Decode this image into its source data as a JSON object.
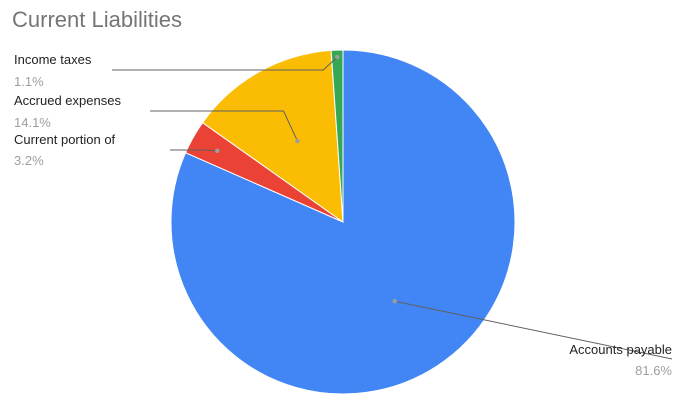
{
  "chart_data": {
    "type": "pie",
    "title": "Current Liabilities",
    "slices": [
      {
        "label": "Accounts payable",
        "value_label": "81.6%",
        "value": 81.6,
        "color": "#4285f4"
      },
      {
        "label": "Current portion of",
        "value_label": "3.2%",
        "value": 3.2,
        "color": "#ea4335"
      },
      {
        "label": "Accrued expenses",
        "value_label": "14.1%",
        "value": 14.1,
        "color": "#fbbc04"
      },
      {
        "label": "Income taxes",
        "value_label": "1.1%",
        "value": 1.1,
        "color": "#34a853"
      }
    ]
  }
}
